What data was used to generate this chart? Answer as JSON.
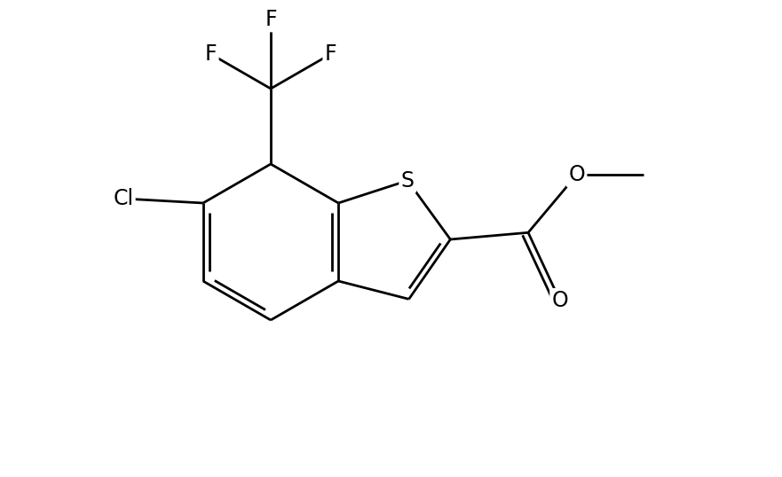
{
  "bg_color": "#ffffff",
  "line_color": "#000000",
  "line_width": 2.0,
  "font_size": 17,
  "font_family": "DejaVu Sans",
  "figsize": [
    8.81,
    5.38
  ],
  "dpi": 100,
  "xlim": [
    0,
    8.81
  ],
  "ylim": [
    0,
    5.38
  ]
}
